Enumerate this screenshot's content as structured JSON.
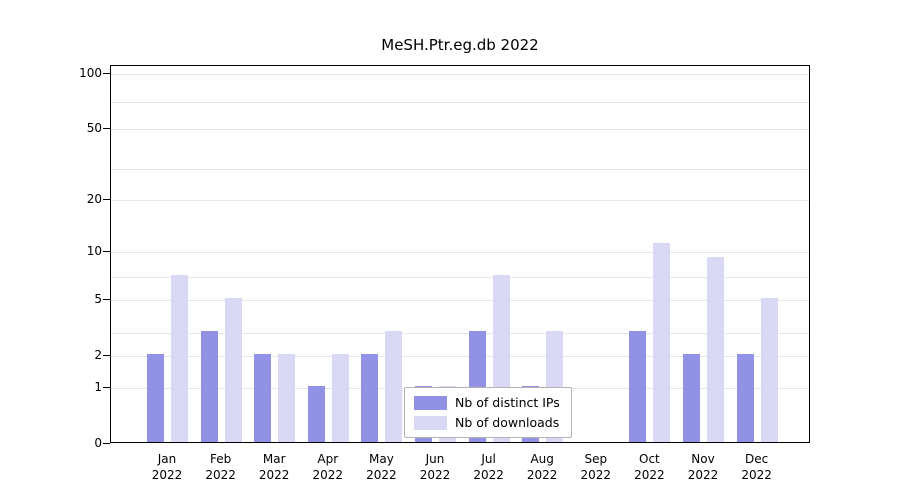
{
  "title": "MeSH.Ptr.eg.db 2022",
  "chart_data": {
    "type": "bar",
    "title": "MeSH.Ptr.eg.db 2022",
    "xlabel": "",
    "ylabel": "",
    "scale": "log1p",
    "ylim": [
      0,
      100
    ],
    "grid": "on",
    "legend_position": "bottom-center",
    "categories": [
      "Jan 2022",
      "Feb 2022",
      "Mar 2022",
      "Apr 2022",
      "May 2022",
      "Jun 2022",
      "Jul 2022",
      "Aug 2022",
      "Sep 2022",
      "Oct 2022",
      "Nov 2022",
      "Dec 2022"
    ],
    "month_labels": [
      [
        "Jan",
        "2022"
      ],
      [
        "Feb",
        "2022"
      ],
      [
        "Mar",
        "2022"
      ],
      [
        "Apr",
        "2022"
      ],
      [
        "May",
        "2022"
      ],
      [
        "Jun",
        "2022"
      ],
      [
        "Jul",
        "2022"
      ],
      [
        "Aug",
        "2022"
      ],
      [
        "Sep",
        "2022"
      ],
      [
        "Oct",
        "2022"
      ],
      [
        "Nov",
        "2022"
      ],
      [
        "Dec",
        "2022"
      ]
    ],
    "y_ticks": [
      0,
      1,
      2,
      5,
      10,
      20,
      50,
      100
    ],
    "grid_values": [
      1,
      2,
      3,
      5,
      7,
      10,
      20,
      30,
      50,
      70,
      100
    ],
    "series": [
      {
        "name": "Nb of distinct IPs",
        "color": "#9191e6",
        "values": [
          2,
          3,
          2,
          1,
          2,
          1,
          3,
          1,
          0,
          3,
          2,
          2
        ]
      },
      {
        "name": "Nb of downloads",
        "color": "#d9d9f6",
        "values": [
          7,
          5,
          2,
          2,
          3,
          1,
          7,
          3,
          0,
          11,
          9,
          5
        ]
      }
    ]
  }
}
